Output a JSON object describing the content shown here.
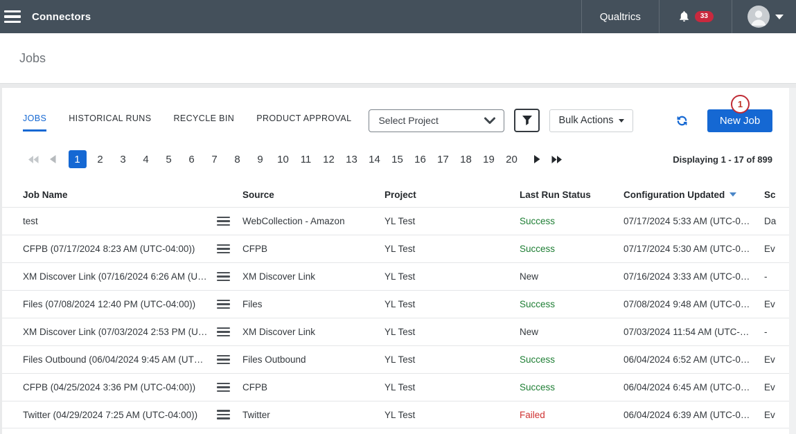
{
  "topbar": {
    "app_title": "Connectors",
    "brand": "Qualtrics",
    "notification_count": "33"
  },
  "page": {
    "title": "Jobs"
  },
  "toolbar": {
    "tabs": [
      {
        "label": "JOBS",
        "active": true
      },
      {
        "label": "HISTORICAL RUNS",
        "active": false
      },
      {
        "label": "RECYCLE BIN",
        "active": false
      },
      {
        "label": "PRODUCT APPROVAL",
        "active": false
      }
    ],
    "project_select_value": "Select Project",
    "bulk_actions_label": "Bulk Actions",
    "new_job_label": "New Job",
    "annotation_label": "1"
  },
  "pagination": {
    "pages": [
      "1",
      "2",
      "3",
      "4",
      "5",
      "6",
      "7",
      "8",
      "9",
      "10",
      "11",
      "12",
      "13",
      "14",
      "15",
      "16",
      "17",
      "18",
      "19",
      "20"
    ],
    "active_page": "1",
    "summary": "Displaying 1 - 17 of 899"
  },
  "table": {
    "columns": [
      "Job Name",
      "Source",
      "Project",
      "Last Run Status",
      "Configuration Updated",
      "Sc"
    ],
    "sorted_column": "Configuration Updated",
    "rows": [
      {
        "name": "test",
        "source": "WebCollection - Amazon",
        "project": "YL Test",
        "status": "Success",
        "status_class": "success",
        "updated": "07/17/2024 5:33 AM (UTC-0…",
        "schedule": "Da"
      },
      {
        "name": "CFPB (07/17/2024 8:23 AM (UTC-04:00))",
        "source": "CFPB",
        "project": "YL Test",
        "status": "Success",
        "status_class": "success",
        "updated": "07/17/2024 5:30 AM (UTC-0…",
        "schedule": "Ev"
      },
      {
        "name": "XM Discover Link (07/16/2024 6:26 AM (U…",
        "source": "XM Discover Link",
        "project": "YL Test",
        "status": "New",
        "status_class": "new",
        "updated": "07/16/2024 3:33 AM (UTC-0…",
        "schedule": "-"
      },
      {
        "name": "Files (07/08/2024 12:40 PM (UTC-04:00))",
        "source": "Files",
        "project": "YL Test",
        "status": "Success",
        "status_class": "success",
        "updated": "07/08/2024 9:48 AM (UTC-0…",
        "schedule": "Ev"
      },
      {
        "name": "XM Discover Link (07/03/2024 2:53 PM (U…",
        "source": "XM Discover Link",
        "project": "YL Test",
        "status": "New",
        "status_class": "new",
        "updated": "07/03/2024 11:54 AM (UTC-…",
        "schedule": "-"
      },
      {
        "name": "Files Outbound (06/04/2024 9:45 AM (UT…",
        "source": "Files Outbound",
        "project": "YL Test",
        "status": "Success",
        "status_class": "success",
        "updated": "06/04/2024 6:52 AM (UTC-0…",
        "schedule": "Ev"
      },
      {
        "name": "CFPB (04/25/2024 3:36 PM (UTC-04:00))",
        "source": "CFPB",
        "project": "YL Test",
        "status": "Success",
        "status_class": "success",
        "updated": "06/04/2024 6:45 AM (UTC-0…",
        "schedule": "Ev"
      },
      {
        "name": "Twitter (04/29/2024 7:25 AM (UTC-04:00))",
        "source": "Twitter",
        "project": "YL Test",
        "status": "Failed",
        "status_class": "failed",
        "updated": "06/04/2024 6:39 AM (UTC-0…",
        "schedule": "Ev"
      }
    ]
  },
  "colors": {
    "topbar_bg": "#44505b",
    "accent_blue": "#1568d3",
    "badge_red": "#c9293e",
    "annotation_red": "#bf2b35",
    "success_green": "#1e7e34",
    "failed_red": "#cf3231"
  }
}
